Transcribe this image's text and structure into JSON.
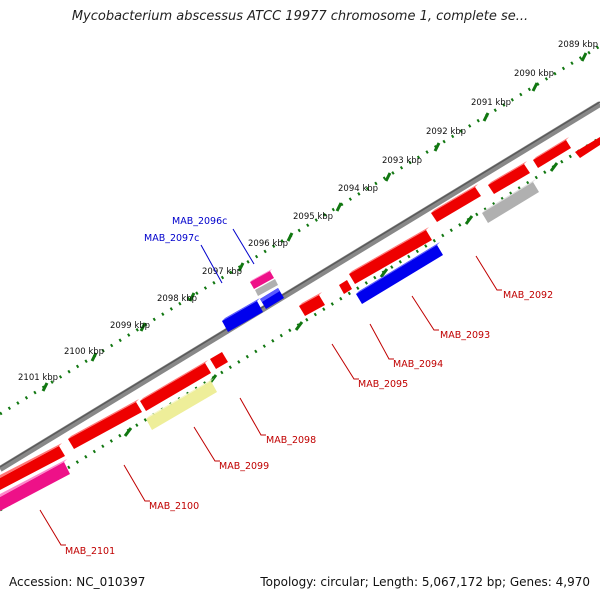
{
  "map": {
    "title": "Mycobacterium abscessus ATCC 19977 chromosome 1, complete se...",
    "accession_text": "Accession: NC_010397",
    "stats_text": "Topology: circular; Length: 5,067,172 bp; Genes: 4,970"
  },
  "kbp_ticks": [
    "2089 kbp",
    "2090 kbp",
    "2091 kbp",
    "2092 kbp",
    "2093 kbp",
    "2094 kbp",
    "2095 kbp",
    "2096 kbp",
    "2097 kbp",
    "2098 kbp",
    "2099 kbp",
    "2100 kbp",
    "2101 kbp"
  ],
  "genes": [
    {
      "name": "MAB_2092",
      "strand": "forward"
    },
    {
      "name": "MAB_2093",
      "strand": "forward"
    },
    {
      "name": "MAB_2094",
      "strand": "forward"
    },
    {
      "name": "MAB_2095",
      "strand": "forward"
    },
    {
      "name": "MAB_2096c",
      "strand": "reverse"
    },
    {
      "name": "MAB_2097c",
      "strand": "reverse"
    },
    {
      "name": "MAB_2098",
      "strand": "forward"
    },
    {
      "name": "MAB_2099",
      "strand": "forward"
    },
    {
      "name": "MAB_2100",
      "strand": "forward"
    },
    {
      "name": "MAB_2101",
      "strand": "forward"
    }
  ],
  "colors": {
    "forward_gene": "#ee0000",
    "reverse_gene": "#0000ee",
    "pink_feature": "#ee1188",
    "gray_feature": "#b0b0b0",
    "khaki_feature": "#eeee99",
    "backbone": "#777777",
    "tick_dots": "#117711",
    "label_forward": "#c00000",
    "label_reverse": "#0000cc"
  }
}
